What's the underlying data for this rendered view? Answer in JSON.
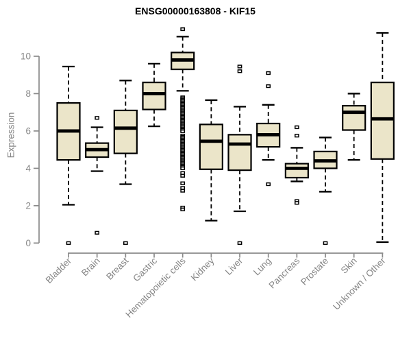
{
  "chart_data": {
    "type": "boxplot",
    "title": "ENSG00000163808 - KIF15",
    "xlabel": "",
    "ylabel": "Expression",
    "ylim": [
      0,
      10
    ],
    "yticks": [
      0,
      2,
      4,
      6,
      8,
      10
    ],
    "grid": false,
    "legend": false,
    "categories": [
      "Bladder",
      "Brain",
      "Breast",
      "Gastric",
      "Hematopoietic cells",
      "Kidney",
      "Liver",
      "Lung",
      "Pancreas",
      "Prostate",
      "Skin",
      "Unknown / Other"
    ],
    "boxes": [
      {
        "category": "Bladder",
        "whisker_low": 2.05,
        "q1": 4.45,
        "median": 6.0,
        "q3": 7.5,
        "whisker_high": 9.45,
        "outliers": [
          0.0
        ]
      },
      {
        "category": "Brain",
        "whisker_low": 3.85,
        "q1": 4.6,
        "median": 5.0,
        "q3": 5.35,
        "whisker_high": 6.2,
        "outliers": [
          6.7,
          0.55
        ]
      },
      {
        "category": "Breast",
        "whisker_low": 3.15,
        "q1": 4.8,
        "median": 6.15,
        "q3": 7.1,
        "whisker_high": 8.7,
        "outliers": [
          0.0
        ]
      },
      {
        "category": "Gastric",
        "whisker_low": 6.25,
        "q1": 7.15,
        "median": 8.0,
        "q3": 8.6,
        "whisker_high": 9.6,
        "outliers": []
      },
      {
        "category": "Hematopoietic cells",
        "whisker_low": 8.15,
        "q1": 9.3,
        "median": 9.8,
        "q3": 10.2,
        "whisker_high": 11.05,
        "outliers": [
          11.45,
          7.8,
          7.73,
          7.66,
          7.59,
          7.52,
          7.45,
          7.38,
          7.31,
          7.24,
          7.17,
          7.1,
          7.03,
          6.96,
          6.89,
          6.82,
          6.75,
          6.68,
          6.61,
          6.54,
          6.47,
          6.4,
          6.33,
          6.26,
          6.19,
          6.12,
          6.05,
          5.98,
          5.75,
          5.68,
          5.61,
          5.54,
          5.47,
          5.4,
          5.33,
          5.26,
          5.19,
          5.12,
          5.05,
          4.98,
          4.91,
          4.84,
          4.77,
          4.7,
          4.63,
          4.56,
          4.49,
          4.42,
          4.35,
          4.28,
          4.21,
          4.14,
          4.07,
          4.0,
          3.75,
          3.6,
          3.2,
          2.95,
          2.8,
          1.9,
          1.8
        ]
      },
      {
        "category": "Kidney",
        "whisker_low": 1.2,
        "q1": 3.95,
        "median": 5.45,
        "q3": 6.35,
        "whisker_high": 7.65,
        "outliers": []
      },
      {
        "category": "Liver",
        "whisker_low": 1.7,
        "q1": 3.9,
        "median": 5.3,
        "q3": 5.8,
        "whisker_high": 7.3,
        "outliers": [
          9.45,
          9.2,
          0.0
        ]
      },
      {
        "category": "Lung",
        "whisker_low": 4.45,
        "q1": 5.15,
        "median": 5.8,
        "q3": 6.4,
        "whisker_high": 7.4,
        "outliers": [
          9.1,
          8.4,
          3.15
        ]
      },
      {
        "category": "Pancreas",
        "whisker_low": 3.3,
        "q1": 3.5,
        "median": 4.0,
        "q3": 4.25,
        "whisker_high": 5.1,
        "outliers": [
          6.2,
          5.75,
          2.25,
          2.15
        ]
      },
      {
        "category": "Prostate",
        "whisker_low": 2.75,
        "q1": 4.0,
        "median": 4.4,
        "q3": 4.9,
        "whisker_high": 5.65,
        "outliers": [
          0.0
        ]
      },
      {
        "category": "Skin",
        "whisker_low": 4.45,
        "q1": 6.05,
        "median": 7.0,
        "q3": 7.35,
        "whisker_high": 8.0,
        "outliers": []
      },
      {
        "category": "Unknown / Other",
        "whisker_low": 0.05,
        "q1": 4.5,
        "median": 6.65,
        "q3": 8.6,
        "whisker_high": 11.25,
        "outliers": []
      }
    ],
    "colors": {
      "box_fill": "#ebe5c9",
      "box_stroke": "#000000",
      "median": "#000000",
      "whisker": "#000000",
      "outlier_stroke": "#000000",
      "outlier_fill": "#ffffff",
      "axis": "#8a8a8a",
      "tick_label": "#858585",
      "title": "#000000",
      "background": "#ffffff"
    }
  }
}
